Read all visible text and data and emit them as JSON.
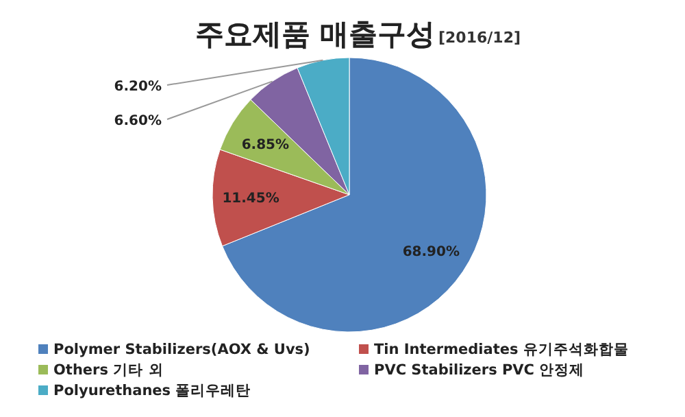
{
  "chart_data": {
    "type": "pie",
    "title": "주요제품 매출구성",
    "subtitle": "[2016/12]",
    "categories": [
      "Polymer Stabilizers(AOX & Uvs)",
      "Tin Intermediates 유기주석화합물",
      "Others 기타 외",
      "PVC Stabilizers PVC 안정제",
      "Polyurethanes 폴리우레탄"
    ],
    "values": [
      68.9,
      11.45,
      6.85,
      6.6,
      6.2
    ],
    "colors": [
      "#4f81bd",
      "#c0504d",
      "#9bbb59",
      "#8064a2",
      "#4bacc6"
    ],
    "value_labels": [
      "68.90%",
      "11.45%",
      "6.85%",
      "6.60%",
      "6.20%"
    ],
    "legend": "bottom"
  }
}
